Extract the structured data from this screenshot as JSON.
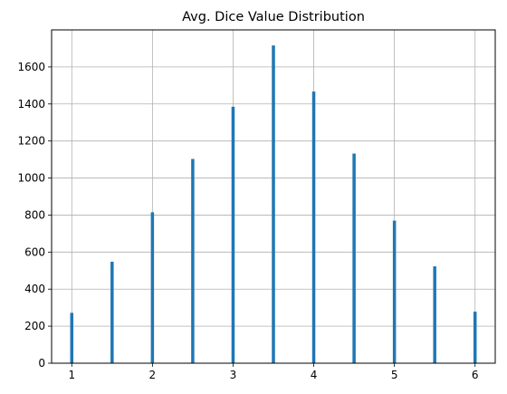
{
  "chart_data": {
    "type": "bar",
    "title": "Avg. Dice Value Distribution",
    "xlabel": "",
    "ylabel": "",
    "x": [
      1.0,
      1.5,
      2.0,
      2.5,
      3.0,
      3.5,
      4.0,
      4.5,
      5.0,
      5.5,
      6.0
    ],
    "values": [
      272,
      548,
      815,
      1103,
      1385,
      1716,
      1467,
      1132,
      770,
      523,
      278
    ],
    "xlim": [
      0.75,
      6.25
    ],
    "ylim": [
      0,
      1800
    ],
    "xticks": [
      1,
      2,
      3,
      4,
      5,
      6
    ],
    "yticks": [
      0,
      200,
      400,
      600,
      800,
      1000,
      1200,
      1400,
      1600
    ],
    "grid": true,
    "bar_color": "#1f77b4"
  }
}
